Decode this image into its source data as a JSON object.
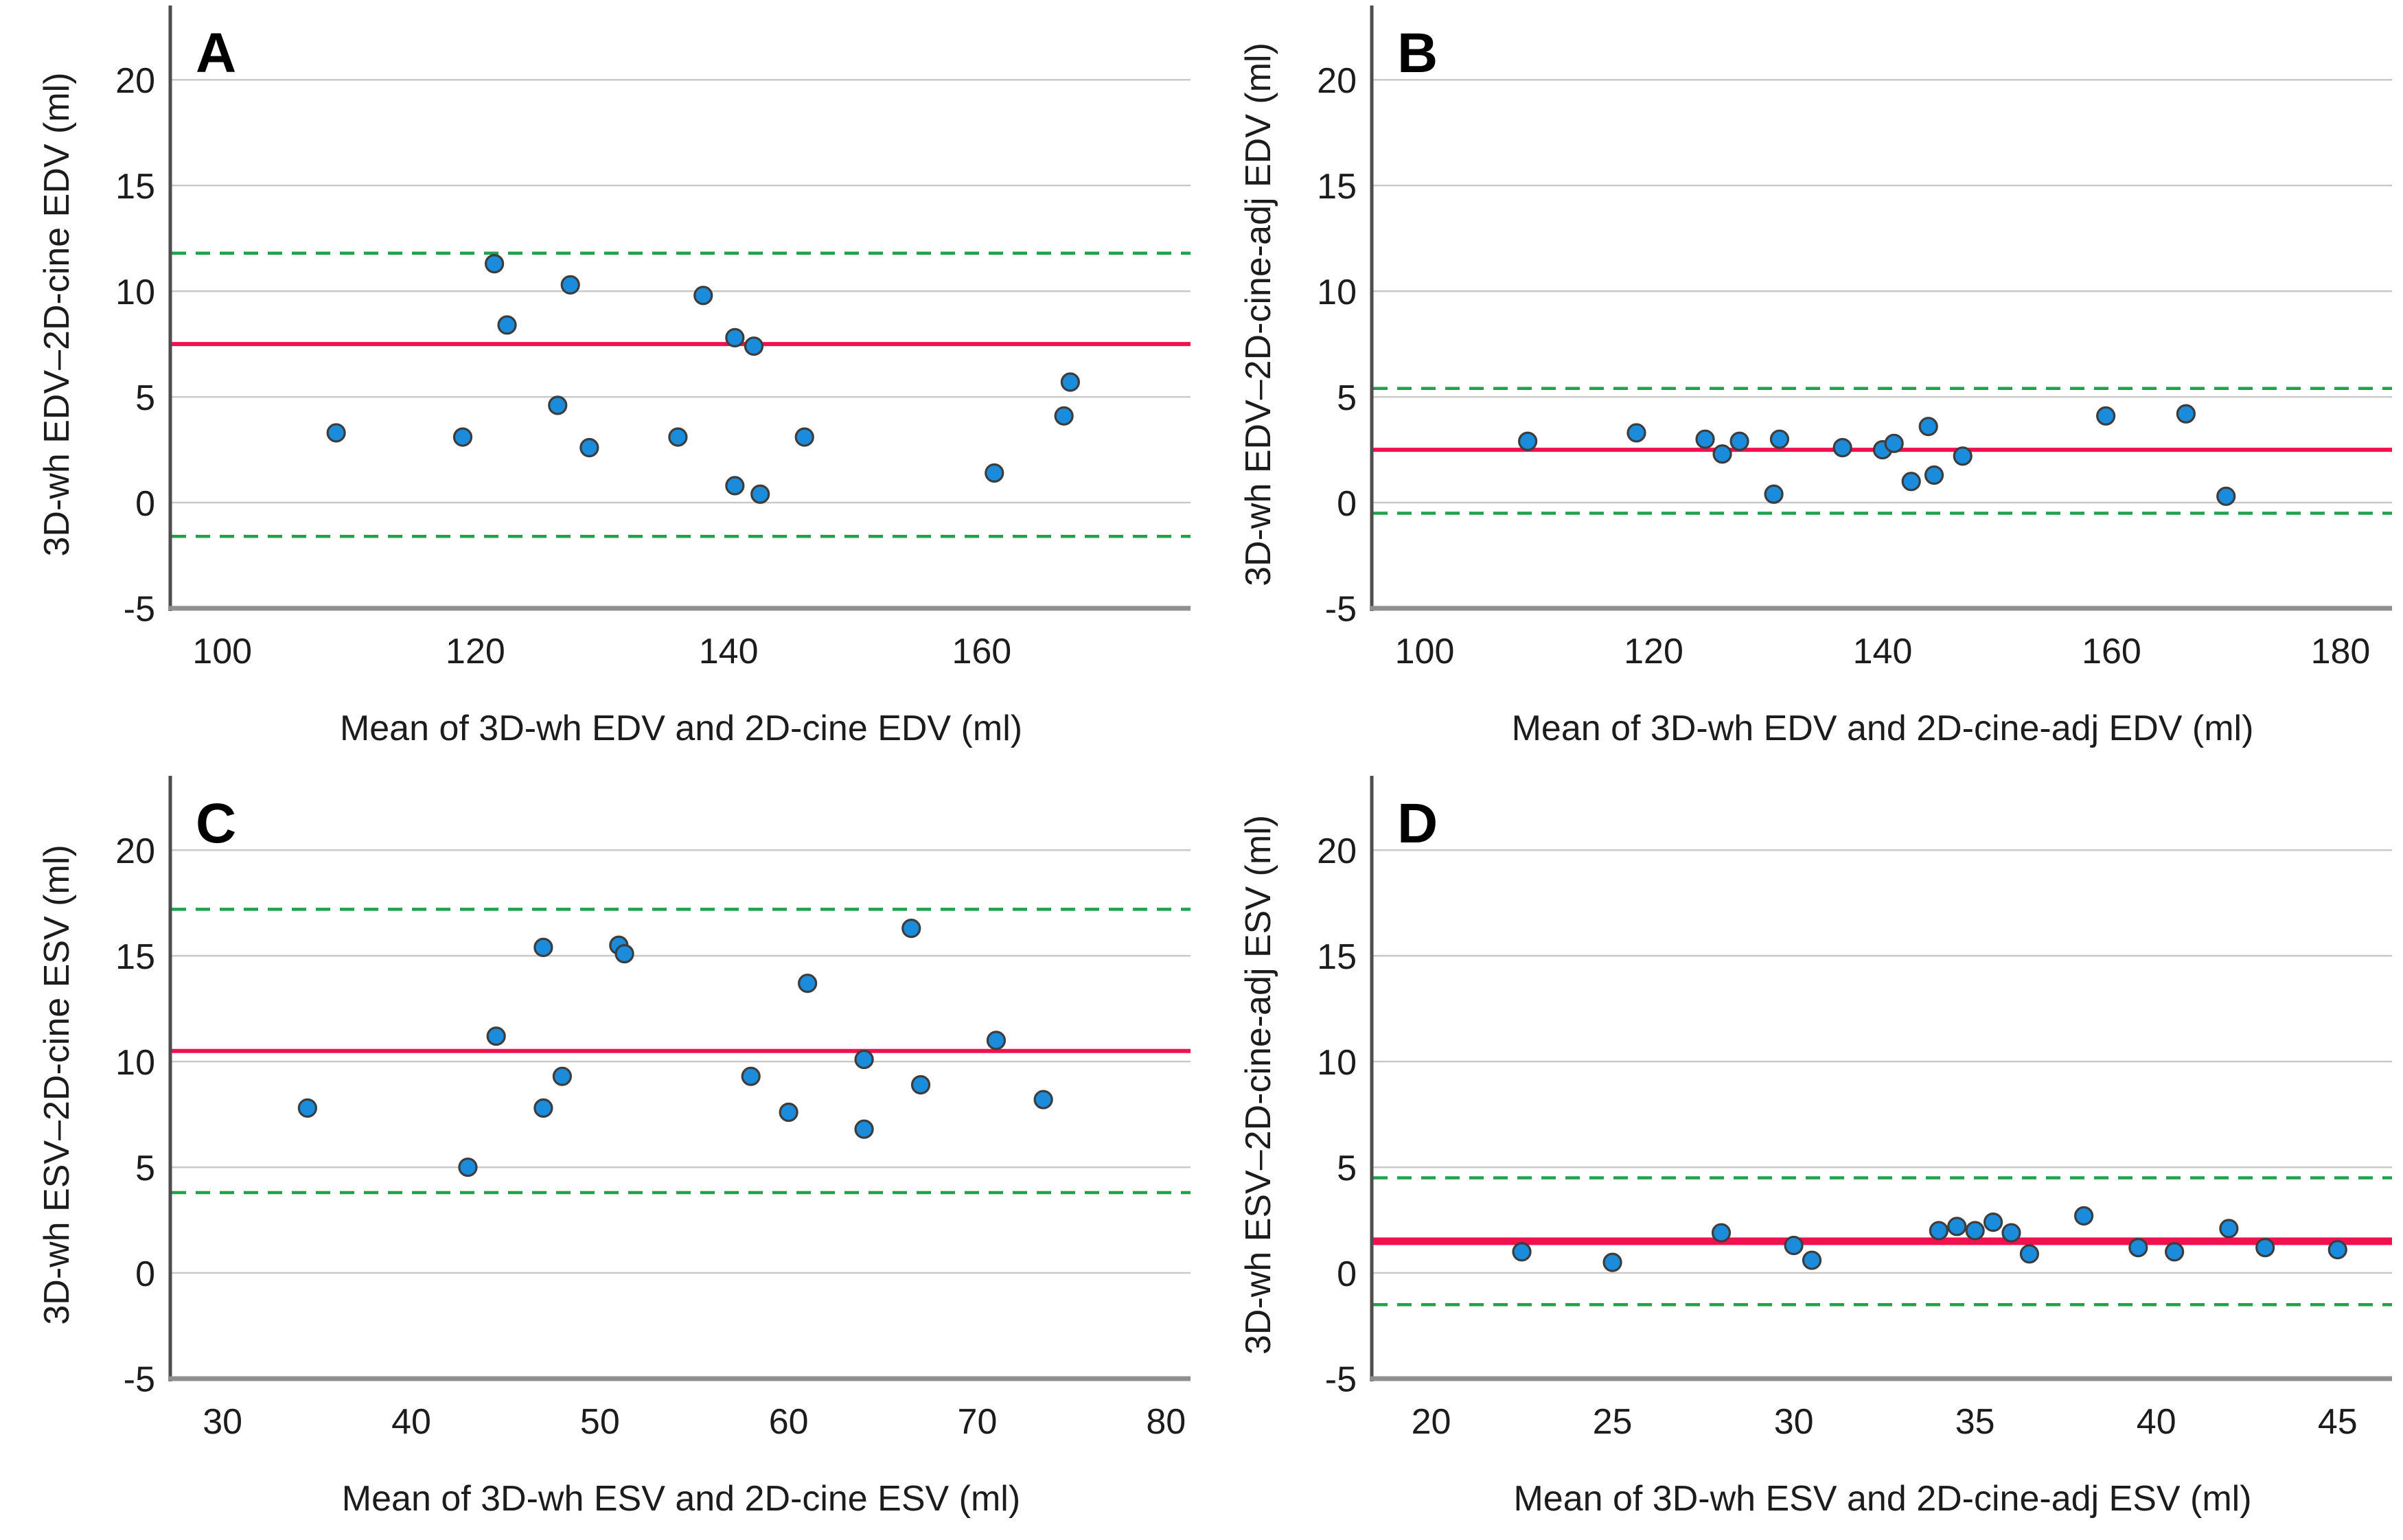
{
  "style": {
    "background_color": "#ffffff",
    "point_fill_color": "#1B8CDB",
    "point_stroke_color": "#3D3D3D",
    "mean_line_color": "#F2104E",
    "loa_line_color": "#1FA24A",
    "gridline_color": "#C9C9C9",
    "y_spine_color": "#4D4D4D",
    "x_spine_color": "#8F8F8F",
    "text_color": "#1C1C1C"
  },
  "chart_data": [
    {
      "type": "scatter",
      "panel_letter": "A",
      "title": "",
      "xlabel": "Mean of 3D-wh EDV and 2D-cine EDV (ml)",
      "ylabel": "3D-wh EDV–2D-cine EDV (ml)",
      "xlim": [
        96,
        176.5
      ],
      "ylim": [
        -5,
        22.8
      ],
      "xticks": [
        100,
        120,
        140,
        160
      ],
      "yticks": [
        -5,
        0,
        5,
        10,
        15,
        20
      ],
      "grid": true,
      "legend": "none",
      "mean_line": 7.5,
      "upper_loa": 11.8,
      "lower_loa": -1.6,
      "mean_line_width": 6,
      "points": [
        [
          109,
          3.3
        ],
        [
          119,
          3.1
        ],
        [
          121.5,
          11.3
        ],
        [
          122.5,
          8.4
        ],
        [
          126.5,
          4.6
        ],
        [
          127.5,
          10.3
        ],
        [
          129,
          2.6
        ],
        [
          136,
          3.1
        ],
        [
          138,
          9.8
        ],
        [
          140.5,
          7.8
        ],
        [
          142,
          7.4
        ],
        [
          140.5,
          0.8
        ],
        [
          142.5,
          0.4
        ],
        [
          146,
          3.1
        ],
        [
          161,
          1.4
        ],
        [
          166.5,
          4.1
        ],
        [
          167,
          5.7
        ]
      ]
    },
    {
      "type": "scatter",
      "panel_letter": "B",
      "title": "",
      "xlabel": "Mean of 3D-wh EDV and 2D-cine-adj EDV (ml)",
      "ylabel": "3D-wh EDV–2D-cine-adj EDV (ml)",
      "xlim": [
        95.5,
        184.5
      ],
      "ylim": [
        -5,
        22.8
      ],
      "xticks": [
        100,
        120,
        140,
        160,
        180
      ],
      "yticks": [
        -5,
        0,
        5,
        10,
        15,
        20
      ],
      "grid": true,
      "legend": "none",
      "mean_line": 2.5,
      "upper_loa": 5.4,
      "lower_loa": -0.5,
      "mean_line_width": 6,
      "points": [
        [
          109,
          2.9
        ],
        [
          118.5,
          3.3
        ],
        [
          124.5,
          3.0
        ],
        [
          126,
          2.3
        ],
        [
          127.5,
          2.9
        ],
        [
          130.5,
          0.4
        ],
        [
          131,
          3.0
        ],
        [
          136.5,
          2.6
        ],
        [
          140,
          2.5
        ],
        [
          141,
          2.8
        ],
        [
          142.5,
          1.0
        ],
        [
          144,
          3.6
        ],
        [
          144.5,
          1.3
        ],
        [
          147,
          2.2
        ],
        [
          159.5,
          4.1
        ],
        [
          166.5,
          4.2
        ],
        [
          170,
          0.3
        ]
      ]
    },
    {
      "type": "scatter",
      "panel_letter": "C",
      "title": "",
      "xlabel": "Mean of 3D-wh ESV and 2D-cine ESV (ml)",
      "ylabel": "3D-wh ESV–2D-cine ESV (ml)",
      "xlim": [
        27.3,
        81.3
      ],
      "ylim": [
        -5,
        22.8
      ],
      "xticks": [
        30,
        40,
        50,
        60,
        70,
        80
      ],
      "yticks": [
        -5,
        0,
        5,
        10,
        15,
        20
      ],
      "grid": true,
      "legend": "none",
      "mean_line": 10.5,
      "upper_loa": 17.2,
      "lower_loa": 3.8,
      "mean_line_width": 6,
      "points": [
        [
          34.5,
          7.8
        ],
        [
          43,
          5.0
        ],
        [
          44.5,
          11.2
        ],
        [
          47,
          15.4
        ],
        [
          47,
          7.8
        ],
        [
          48,
          9.3
        ],
        [
          51,
          15.5
        ],
        [
          51.3,
          15.1
        ],
        [
          58,
          9.3
        ],
        [
          60,
          7.6
        ],
        [
          61,
          13.7
        ],
        [
          64,
          10.1
        ],
        [
          64,
          6.8
        ],
        [
          66.5,
          16.3
        ],
        [
          67,
          8.9
        ],
        [
          71,
          11.0
        ],
        [
          73.5,
          8.2
        ]
      ]
    },
    {
      "type": "scatter",
      "panel_letter": "D",
      "title": "",
      "xlabel": "Mean of 3D-wh ESV and 2D-cine-adj ESV (ml)",
      "ylabel": "3D-wh ESV–2D-cine-adj ESV (ml)",
      "xlim": [
        18.4,
        46.5
      ],
      "ylim": [
        -5,
        22.8
      ],
      "xticks": [
        20,
        25,
        30,
        35,
        40,
        45
      ],
      "yticks": [
        -5,
        0,
        5,
        10,
        15,
        20
      ],
      "grid": true,
      "legend": "none",
      "mean_line": 1.5,
      "upper_loa": 4.5,
      "lower_loa": -1.5,
      "mean_line_width": 11,
      "points": [
        [
          22.5,
          1.0
        ],
        [
          25,
          0.5
        ],
        [
          28,
          1.9
        ],
        [
          30,
          1.3
        ],
        [
          30.5,
          0.6
        ],
        [
          34,
          2.0
        ],
        [
          34.5,
          2.2
        ],
        [
          35,
          2.0
        ],
        [
          35.5,
          2.4
        ],
        [
          36,
          1.9
        ],
        [
          36.5,
          0.9
        ],
        [
          38,
          2.7
        ],
        [
          39.5,
          1.2
        ],
        [
          40.5,
          1.0
        ],
        [
          42,
          2.1
        ],
        [
          43,
          1.2
        ],
        [
          45,
          1.1
        ]
      ]
    }
  ]
}
